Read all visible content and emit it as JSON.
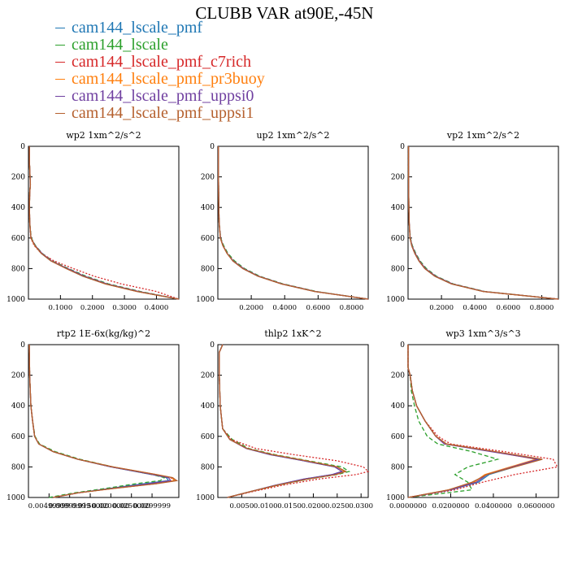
{
  "title": "CLUBB VAR at90E,-45N",
  "legend": [
    {
      "name": "cam144_lscale_pmf",
      "color": "#1f77b4",
      "dash": "solid"
    },
    {
      "name": "cam144_lscale",
      "color": "#2ca02c",
      "dash": "dashed"
    },
    {
      "name": "cam144_lscale_pmf_c7rich",
      "color": "#d62728",
      "dash": "dotted"
    },
    {
      "name": "cam144_lscale_pmf_pr3buoy",
      "color": "#ff7f0e",
      "dash": "solid"
    },
    {
      "name": "cam144_lscale_pmf_uppsi0",
      "color": "#7040a0",
      "dash": "solid"
    },
    {
      "name": "cam144_lscale_pmf_uppsi1",
      "color": "#b5602e",
      "dash": "solid"
    }
  ],
  "y_ticks": [
    0,
    200,
    400,
    600,
    800,
    1000
  ],
  "chart_data": [
    {
      "type": "line",
      "title": "wp2  1xm^2/s^2",
      "xlim": [
        0,
        0.47
      ],
      "ylim": [
        1000,
        0
      ],
      "xticks": [
        0.1,
        0.2,
        0.3,
        0.4
      ],
      "xtick_labels": [
        "0.1000",
        "0.2000",
        "0.3000",
        "0.4000"
      ],
      "y": [
        0,
        100,
        200,
        250,
        300,
        400,
        500,
        600,
        650,
        700,
        750,
        800,
        850,
        900,
        950,
        1000
      ],
      "series": [
        {
          "name": "cam144_lscale_pmf",
          "values": [
            0.003,
            0.003,
            0.005,
            0.006,
            0.004,
            0.003,
            0.004,
            0.008,
            0.02,
            0.04,
            0.07,
            0.12,
            0.17,
            0.24,
            0.34,
            0.47
          ]
        },
        {
          "name": "cam144_lscale",
          "values": [
            0.003,
            0.003,
            0.005,
            0.006,
            0.004,
            0.003,
            0.004,
            0.009,
            0.022,
            0.043,
            0.075,
            0.125,
            0.18,
            0.25,
            0.35,
            0.47
          ]
        },
        {
          "name": "cam144_lscale_pmf_c7rich",
          "values": [
            0.003,
            0.003,
            0.005,
            0.006,
            0.004,
            0.003,
            0.004,
            0.007,
            0.018,
            0.04,
            0.08,
            0.14,
            0.205,
            0.29,
            0.4,
            0.47
          ]
        },
        {
          "name": "cam144_lscale_pmf_pr3buoy",
          "values": [
            0.003,
            0.003,
            0.005,
            0.006,
            0.004,
            0.003,
            0.004,
            0.008,
            0.02,
            0.041,
            0.071,
            0.12,
            0.172,
            0.24,
            0.34,
            0.47
          ]
        },
        {
          "name": "cam144_lscale_pmf_uppsi0",
          "values": [
            0.003,
            0.003,
            0.005,
            0.006,
            0.004,
            0.003,
            0.004,
            0.008,
            0.021,
            0.042,
            0.072,
            0.122,
            0.175,
            0.245,
            0.345,
            0.47
          ]
        },
        {
          "name": "cam144_lscale_pmf_uppsi1",
          "values": [
            0.003,
            0.003,
            0.005,
            0.006,
            0.004,
            0.003,
            0.004,
            0.008,
            0.02,
            0.04,
            0.07,
            0.118,
            0.17,
            0.24,
            0.34,
            0.47
          ]
        }
      ]
    },
    {
      "type": "line",
      "title": "up2  1xm^2/s^2",
      "xlim": [
        0,
        0.9
      ],
      "ylim": [
        1000,
        0
      ],
      "xticks": [
        0.2,
        0.4,
        0.6,
        0.8
      ],
      "xtick_labels": [
        "0.2000",
        "0.4000",
        "0.6000",
        "0.8000"
      ],
      "y": [
        0,
        200,
        400,
        500,
        600,
        650,
        700,
        750,
        800,
        850,
        900,
        950,
        1000
      ],
      "series": [
        {
          "name": "cam144_lscale_pmf",
          "values": [
            0.004,
            0.004,
            0.006,
            0.008,
            0.015,
            0.03,
            0.055,
            0.09,
            0.15,
            0.24,
            0.38,
            0.58,
            0.9
          ]
        },
        {
          "name": "cam144_lscale",
          "values": [
            0.004,
            0.004,
            0.006,
            0.008,
            0.017,
            0.035,
            0.06,
            0.1,
            0.16,
            0.25,
            0.39,
            0.59,
            0.9
          ]
        },
        {
          "name": "cam144_lscale_pmf_c7rich",
          "values": [
            0.004,
            0.004,
            0.006,
            0.008,
            0.015,
            0.03,
            0.055,
            0.09,
            0.15,
            0.24,
            0.38,
            0.58,
            0.9
          ]
        },
        {
          "name": "cam144_lscale_pmf_pr3buoy",
          "values": [
            0.004,
            0.004,
            0.006,
            0.008,
            0.015,
            0.03,
            0.055,
            0.092,
            0.152,
            0.242,
            0.382,
            0.582,
            0.9
          ]
        },
        {
          "name": "cam144_lscale_pmf_uppsi0",
          "values": [
            0.004,
            0.004,
            0.006,
            0.008,
            0.016,
            0.031,
            0.056,
            0.093,
            0.154,
            0.244,
            0.384,
            0.584,
            0.9
          ]
        },
        {
          "name": "cam144_lscale_pmf_uppsi1",
          "values": [
            0.004,
            0.004,
            0.006,
            0.008,
            0.015,
            0.03,
            0.055,
            0.09,
            0.15,
            0.24,
            0.38,
            0.58,
            0.9
          ]
        }
      ]
    },
    {
      "type": "line",
      "title": "vp2  1xm^2/s^2",
      "xlim": [
        0,
        0.9
      ],
      "ylim": [
        1000,
        0
      ],
      "xticks": [
        0.2,
        0.4,
        0.6,
        0.8
      ],
      "xtick_labels": [
        "0.2000",
        "0.4000",
        "0.6000",
        "0.8000"
      ],
      "y": [
        0,
        200,
        400,
        500,
        600,
        650,
        700,
        750,
        800,
        850,
        900,
        950,
        1000
      ],
      "series": [
        {
          "name": "cam144_lscale_pmf",
          "values": [
            0.003,
            0.003,
            0.005,
            0.007,
            0.012,
            0.022,
            0.04,
            0.065,
            0.1,
            0.16,
            0.26,
            0.45,
            0.9
          ]
        },
        {
          "name": "cam144_lscale",
          "values": [
            0.003,
            0.003,
            0.005,
            0.007,
            0.014,
            0.026,
            0.046,
            0.072,
            0.11,
            0.17,
            0.27,
            0.46,
            0.9
          ]
        },
        {
          "name": "cam144_lscale_pmf_c7rich",
          "values": [
            0.003,
            0.003,
            0.005,
            0.007,
            0.012,
            0.022,
            0.04,
            0.065,
            0.1,
            0.16,
            0.26,
            0.45,
            0.9
          ]
        },
        {
          "name": "cam144_lscale_pmf_pr3buoy",
          "values": [
            0.003,
            0.003,
            0.005,
            0.007,
            0.012,
            0.023,
            0.041,
            0.066,
            0.102,
            0.162,
            0.262,
            0.452,
            0.9
          ]
        },
        {
          "name": "cam144_lscale_pmf_uppsi0",
          "values": [
            0.003,
            0.003,
            0.005,
            0.007,
            0.013,
            0.024,
            0.043,
            0.068,
            0.104,
            0.165,
            0.265,
            0.455,
            0.9
          ]
        },
        {
          "name": "cam144_lscale_pmf_uppsi1",
          "values": [
            0.003,
            0.003,
            0.005,
            0.007,
            0.012,
            0.022,
            0.04,
            0.065,
            0.1,
            0.16,
            0.26,
            0.45,
            0.9
          ]
        }
      ]
    },
    {
      "type": "line",
      "title": "rtp2  1E-6x(kg/kg)^2",
      "xlim": [
        0,
        0.0365
      ],
      "ylim": [
        1000,
        0
      ],
      "xticks": [
        0.005,
        0.01,
        0.015,
        0.02,
        0.025,
        0.03
      ],
      "xtick_labels": [
        "0.00499999",
        "0.00999999",
        "0.0150000",
        "0.0200000",
        "0.0250000",
        "0.0299999"
      ],
      "y": [
        0,
        200,
        400,
        500,
        600,
        650,
        700,
        750,
        800,
        850,
        870,
        890,
        910,
        940,
        970,
        1000
      ],
      "series": [
        {
          "name": "cam144_lscale_pmf",
          "values": [
            0.0002,
            0.0003,
            0.0006,
            0.001,
            0.0015,
            0.0025,
            0.006,
            0.012,
            0.02,
            0.03,
            0.0335,
            0.034,
            0.028,
            0.02,
            0.012,
            0.006
          ]
        },
        {
          "name": "cam144_lscale",
          "values": [
            0.0002,
            0.0003,
            0.0006,
            0.001,
            0.0016,
            0.0027,
            0.0065,
            0.0125,
            0.0205,
            0.03,
            0.033,
            0.032,
            0.026,
            0.019,
            0.011,
            0.005
          ]
        },
        {
          "name": "cam144_lscale_pmf_c7rich",
          "values": [
            0.0002,
            0.0003,
            0.0006,
            0.001,
            0.0015,
            0.0025,
            0.006,
            0.012,
            0.02,
            0.0305,
            0.0345,
            0.0355,
            0.031,
            0.021,
            0.012,
            0.006
          ]
        },
        {
          "name": "cam144_lscale_pmf_pr3buoy",
          "values": [
            0.0002,
            0.0003,
            0.0006,
            0.001,
            0.0015,
            0.0025,
            0.006,
            0.012,
            0.0205,
            0.031,
            0.0348,
            0.0355,
            0.03,
            0.021,
            0.012,
            0.006
          ]
        },
        {
          "name": "cam144_lscale_pmf_uppsi0",
          "values": [
            0.0002,
            0.0003,
            0.0006,
            0.001,
            0.0015,
            0.0025,
            0.006,
            0.012,
            0.0202,
            0.0302,
            0.034,
            0.0345,
            0.029,
            0.0205,
            0.012,
            0.006
          ]
        },
        {
          "name": "cam144_lscale_pmf_uppsi1",
          "values": [
            0.0002,
            0.0003,
            0.0006,
            0.001,
            0.0015,
            0.0025,
            0.006,
            0.012,
            0.0205,
            0.031,
            0.035,
            0.036,
            0.031,
            0.021,
            0.012,
            0.006
          ]
        }
      ]
    },
    {
      "type": "line",
      "title": "thlp2  1xK^2",
      "xlim": [
        0,
        0.0315
      ],
      "ylim": [
        1000,
        0
      ],
      "xticks": [
        0.005,
        0.01,
        0.015,
        0.02,
        0.025,
        0.03
      ],
      "xtick_labels": [
        "0.0050",
        "0.0100",
        "0.0150",
        "0.0200",
        "0.0250",
        "0.0300"
      ],
      "y": [
        0,
        50,
        100,
        200,
        400,
        550,
        620,
        680,
        720,
        760,
        800,
        830,
        850,
        880,
        920,
        960,
        1000
      ],
      "series": [
        {
          "name": "cam144_lscale_pmf",
          "values": [
            0.001,
            0.0003,
            0.0003,
            0.0003,
            0.0005,
            0.001,
            0.0025,
            0.006,
            0.011,
            0.018,
            0.0245,
            0.026,
            0.024,
            0.018,
            0.012,
            0.007,
            0.002
          ]
        },
        {
          "name": "cam144_lscale",
          "values": [
            0.001,
            0.0003,
            0.0003,
            0.0003,
            0.0005,
            0.001,
            0.003,
            0.0065,
            0.012,
            0.019,
            0.026,
            0.0275,
            0.025,
            0.019,
            0.0125,
            0.007,
            0.002
          ]
        },
        {
          "name": "cam144_lscale_pmf_c7rich",
          "values": [
            0.001,
            0.0003,
            0.0003,
            0.0003,
            0.0005,
            0.001,
            0.0028,
            0.008,
            0.016,
            0.025,
            0.0305,
            0.0315,
            0.029,
            0.021,
            0.0135,
            0.0075,
            0.002
          ]
        },
        {
          "name": "cam144_lscale_pmf_pr3buoy",
          "values": [
            0.001,
            0.0003,
            0.0003,
            0.0003,
            0.0005,
            0.001,
            0.0025,
            0.006,
            0.0115,
            0.0185,
            0.025,
            0.0265,
            0.0245,
            0.0185,
            0.0122,
            0.007,
            0.002
          ]
        },
        {
          "name": "cam144_lscale_pmf_uppsi0",
          "values": [
            0.001,
            0.0003,
            0.0003,
            0.0003,
            0.0005,
            0.001,
            0.0025,
            0.006,
            0.011,
            0.018,
            0.0245,
            0.026,
            0.024,
            0.018,
            0.012,
            0.007,
            0.002
          ]
        },
        {
          "name": "cam144_lscale_pmf_uppsi1",
          "values": [
            0.001,
            0.0003,
            0.0003,
            0.0003,
            0.0005,
            0.001,
            0.0025,
            0.0062,
            0.0115,
            0.0185,
            0.025,
            0.0268,
            0.0248,
            0.0188,
            0.0123,
            0.007,
            0.002
          ]
        }
      ]
    },
    {
      "type": "line",
      "title": "wp3  1xm^3/s^3",
      "xlim": [
        0,
        0.0705
      ],
      "ylim": [
        1000,
        0
      ],
      "xticks": [
        0,
        0.02,
        0.04,
        0.06
      ],
      "xtick_labels": [
        "0.0000000",
        "0.0200000",
        "0.0400000",
        "0.0600000"
      ],
      "y": [
        0,
        150,
        200,
        300,
        400,
        500,
        600,
        650,
        700,
        750,
        800,
        850,
        900,
        950,
        1000
      ],
      "series": [
        {
          "name": "cam144_lscale_pmf",
          "values": [
            0.0,
            0.0,
            0.001,
            0.002,
            0.004,
            0.008,
            0.013,
            0.018,
            0.04,
            0.062,
            0.05,
            0.038,
            0.033,
            0.02,
            0.0
          ]
        },
        {
          "name": "cam144_lscale",
          "values": [
            0.0,
            0.0,
            0.001,
            0.0015,
            0.003,
            0.005,
            0.009,
            0.014,
            0.03,
            0.042,
            0.028,
            0.022,
            0.028,
            0.03,
            0.0
          ]
        },
        {
          "name": "cam144_lscale_pmf_c7rich",
          "values": [
            0.0,
            0.0,
            0.001,
            0.002,
            0.004,
            0.008,
            0.014,
            0.02,
            0.045,
            0.068,
            0.07,
            0.05,
            0.035,
            0.022,
            0.0
          ]
        },
        {
          "name": "cam144_lscale_pmf_pr3buoy",
          "values": [
            0.0,
            0.0,
            0.001,
            0.002,
            0.004,
            0.008,
            0.013,
            0.018,
            0.04,
            0.06,
            0.048,
            0.036,
            0.031,
            0.019,
            0.0
          ]
        },
        {
          "name": "cam144_lscale_pmf_uppsi0",
          "values": [
            0.0,
            0.0,
            0.001,
            0.002,
            0.004,
            0.008,
            0.013,
            0.017,
            0.039,
            0.061,
            0.049,
            0.037,
            0.032,
            0.02,
            0.0
          ]
        },
        {
          "name": "cam144_lscale_pmf_uppsi1",
          "values": [
            0.0,
            0.0,
            0.001,
            0.002,
            0.004,
            0.008,
            0.013,
            0.018,
            0.041,
            0.063,
            0.05,
            0.037,
            0.03,
            0.019,
            0.0
          ]
        }
      ]
    }
  ]
}
